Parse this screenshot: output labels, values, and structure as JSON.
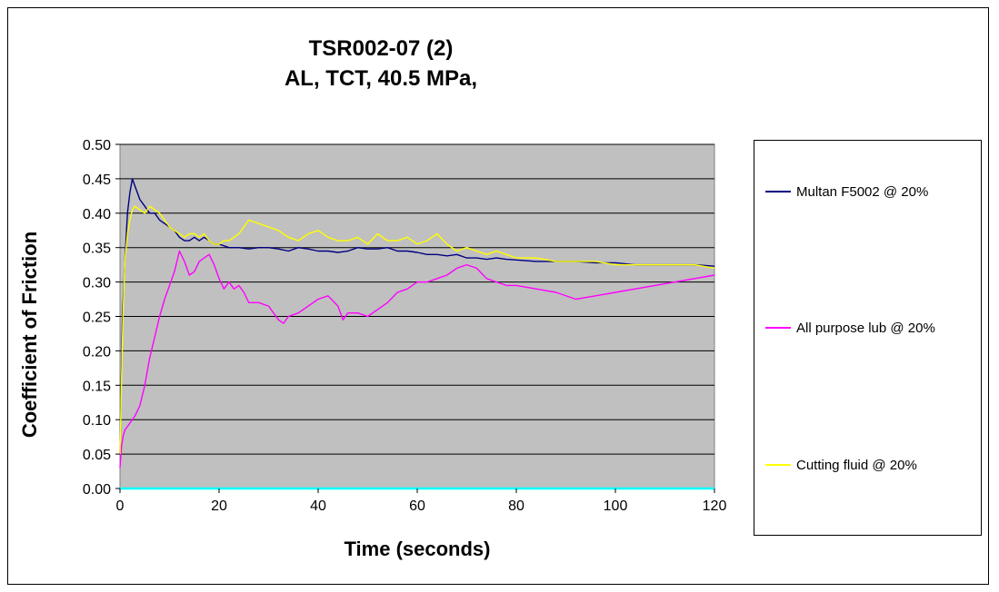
{
  "chart_data": {
    "type": "line",
    "title_lines": [
      "TSR002-07 (2)",
      "AL, TCT, 40.5 MPa,"
    ],
    "xlabel": "Time (seconds)",
    "ylabel": "Coefficient of Friction",
    "xlim": [
      0,
      120
    ],
    "ylim": [
      0,
      0.5
    ],
    "x_ticks": [
      0,
      20,
      40,
      60,
      80,
      100,
      120
    ],
    "y_ticks": [
      0.0,
      0.05,
      0.1,
      0.15,
      0.2,
      0.25,
      0.3,
      0.35,
      0.4,
      0.45,
      0.5
    ],
    "y_tick_labels": [
      "0.00",
      "0.05",
      "0.10",
      "0.15",
      "0.20",
      "0.25",
      "0.30",
      "0.35",
      "0.40",
      "0.45",
      "0.50"
    ],
    "x_tick_labels": [
      "0",
      "20",
      "40",
      "60",
      "80",
      "100",
      "120"
    ],
    "grid": "horizontal",
    "plot_background": "#c0c0c0",
    "legend_position": "right",
    "series": [
      {
        "name": "Multan F5002 @ 20%",
        "color": "#000080",
        "x": [
          0,
          0.5,
          1,
          1.5,
          2,
          2.5,
          3,
          3.5,
          4,
          5,
          6,
          7,
          8,
          9,
          10,
          11,
          12,
          13,
          14,
          15,
          16,
          17,
          18,
          19,
          20,
          22,
          24,
          26,
          28,
          30,
          32,
          34,
          36,
          38,
          40,
          42,
          44,
          46,
          48,
          50,
          52,
          54,
          56,
          58,
          60,
          62,
          64,
          66,
          68,
          70,
          72,
          74,
          76,
          78,
          80,
          84,
          88,
          92,
          96,
          100,
          104,
          108,
          112,
          116,
          120
        ],
        "y": [
          0.05,
          0.25,
          0.33,
          0.4,
          0.43,
          0.45,
          0.44,
          0.43,
          0.42,
          0.41,
          0.4,
          0.4,
          0.39,
          0.385,
          0.38,
          0.375,
          0.365,
          0.36,
          0.36,
          0.365,
          0.36,
          0.365,
          0.36,
          0.355,
          0.355,
          0.35,
          0.35,
          0.348,
          0.35,
          0.35,
          0.348,
          0.345,
          0.35,
          0.348,
          0.345,
          0.345,
          0.343,
          0.345,
          0.35,
          0.348,
          0.348,
          0.35,
          0.345,
          0.345,
          0.343,
          0.34,
          0.34,
          0.338,
          0.34,
          0.335,
          0.335,
          0.333,
          0.335,
          0.333,
          0.332,
          0.33,
          0.33,
          0.33,
          0.328,
          0.328,
          0.325,
          0.325,
          0.325,
          0.325,
          0.323
        ]
      },
      {
        "name": "All purpose lub @ 20%",
        "color": "#ff00ff",
        "x": [
          0,
          0.3,
          0.6,
          1,
          2,
          3,
          4,
          5,
          6,
          7,
          8,
          9,
          10,
          11,
          12,
          13,
          14,
          15,
          16,
          17,
          18,
          19,
          20,
          21,
          22,
          23,
          24,
          25,
          26,
          28,
          30,
          32,
          33,
          34,
          36,
          38,
          40,
          42,
          44,
          45,
          46,
          48,
          50,
          52,
          54,
          56,
          58,
          60,
          62,
          64,
          66,
          68,
          70,
          72,
          74,
          76,
          78,
          80,
          84,
          88,
          92,
          96,
          100,
          104,
          108,
          112,
          116,
          120
        ],
        "y": [
          0.03,
          0.06,
          0.075,
          0.085,
          0.095,
          0.105,
          0.12,
          0.15,
          0.19,
          0.22,
          0.25,
          0.275,
          0.295,
          0.315,
          0.345,
          0.33,
          0.31,
          0.315,
          0.33,
          0.335,
          0.34,
          0.325,
          0.305,
          0.29,
          0.3,
          0.29,
          0.295,
          0.285,
          0.27,
          0.27,
          0.265,
          0.245,
          0.24,
          0.25,
          0.255,
          0.265,
          0.275,
          0.28,
          0.265,
          0.245,
          0.255,
          0.255,
          0.25,
          0.26,
          0.27,
          0.285,
          0.29,
          0.3,
          0.3,
          0.305,
          0.31,
          0.32,
          0.325,
          0.32,
          0.305,
          0.3,
          0.295,
          0.295,
          0.29,
          0.285,
          0.275,
          0.28,
          0.285,
          0.29,
          0.295,
          0.3,
          0.305,
          0.31
        ]
      },
      {
        "name": "Cutting fluid @ 20%",
        "color": "#ffff00",
        "x": [
          0,
          0.3,
          0.6,
          1,
          1.5,
          2,
          2.5,
          3,
          4,
          5,
          6,
          7,
          8,
          9,
          10,
          11,
          12,
          13,
          14,
          15,
          16,
          17,
          18,
          19,
          20,
          21,
          22,
          24,
          26,
          28,
          30,
          32,
          34,
          36,
          38,
          40,
          42,
          44,
          46,
          48,
          50,
          52,
          54,
          56,
          58,
          60,
          62,
          64,
          66,
          68,
          70,
          72,
          74,
          76,
          78,
          80,
          84,
          88,
          92,
          96,
          100,
          104,
          108,
          112,
          116,
          120
        ],
        "y": [
          0.05,
          0.15,
          0.25,
          0.33,
          0.37,
          0.39,
          0.405,
          0.41,
          0.405,
          0.4,
          0.41,
          0.405,
          0.4,
          0.39,
          0.38,
          0.375,
          0.37,
          0.365,
          0.37,
          0.37,
          0.365,
          0.37,
          0.36,
          0.355,
          0.355,
          0.36,
          0.36,
          0.37,
          0.39,
          0.385,
          0.38,
          0.375,
          0.365,
          0.36,
          0.37,
          0.375,
          0.365,
          0.36,
          0.36,
          0.365,
          0.355,
          0.37,
          0.36,
          0.36,
          0.365,
          0.355,
          0.36,
          0.37,
          0.355,
          0.345,
          0.35,
          0.345,
          0.34,
          0.345,
          0.34,
          0.335,
          0.335,
          0.33,
          0.33,
          0.33,
          0.325,
          0.325,
          0.325,
          0.325,
          0.325,
          0.32
        ]
      },
      {
        "name": "",
        "color": "#00ffff",
        "x": [
          0,
          120
        ],
        "y": [
          0.0,
          0.0
        ]
      }
    ]
  }
}
